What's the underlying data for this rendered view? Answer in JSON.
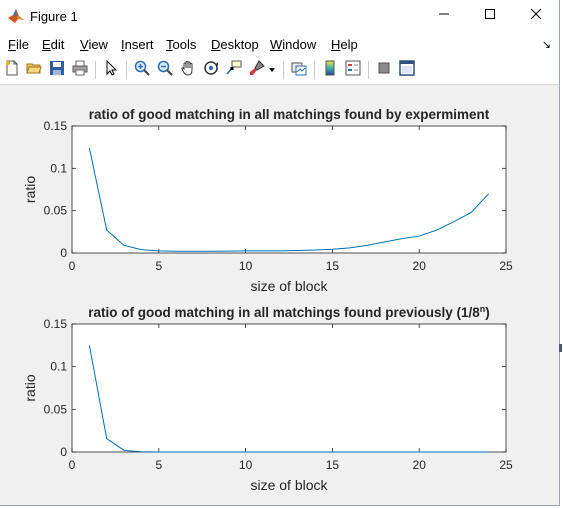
{
  "window": {
    "title": "Figure 1",
    "icon": "matlab-logo-icon"
  },
  "controls": {
    "minimize": "minimize-icon",
    "maximize": "maximize-icon",
    "close": "close-icon"
  },
  "menu": {
    "items": [
      {
        "key": "F",
        "rest": "ile"
      },
      {
        "key": "E",
        "rest": "dit"
      },
      {
        "key": "V",
        "rest": "iew"
      },
      {
        "key": "I",
        "rest": "nsert"
      },
      {
        "key": "T",
        "rest": "ools"
      },
      {
        "key": "D",
        "rest": "esktop"
      },
      {
        "key": "W",
        "rest": "indow"
      },
      {
        "key": "H",
        "rest": "elp"
      }
    ],
    "overflow": "↘"
  },
  "toolbar": {
    "icons": [
      "new-figure-icon",
      "open-file-icon",
      "save-icon",
      "print-icon",
      "select-arrow-icon",
      "zoom-in-icon",
      "zoom-out-icon",
      "pan-hand-icon",
      "rotate-3d-icon",
      "data-cursor-icon",
      "brush-icon",
      "brush-dropdown-icon",
      "link-plot-icon",
      "colorbar-icon",
      "legend-icon",
      "hide-plot-tools-icon",
      "show-plot-tools-icon"
    ]
  },
  "chart_data": [
    {
      "type": "line",
      "title": "ratio of good matching in all matchings found by expermiment",
      "xlabel": "size of block",
      "ylabel": "ratio",
      "xlim": [
        0,
        25
      ],
      "ylim": [
        0,
        0.15
      ],
      "xticks": [
        "0",
        "5",
        "10",
        "15",
        "20",
        "25"
      ],
      "yticks": [
        "0",
        "0.05",
        "0.1",
        "0.15"
      ],
      "grid": false,
      "color": "#0072bd",
      "x": [
        1,
        2,
        3,
        4,
        5,
        6,
        7,
        8,
        9,
        10,
        11,
        12,
        13,
        14,
        15,
        16,
        17,
        18,
        19,
        20,
        21,
        22,
        23,
        24
      ],
      "y": [
        0.124,
        0.027,
        0.009,
        0.004,
        0.0025,
        0.002,
        0.002,
        0.002,
        0.0022,
        0.0025,
        0.0025,
        0.0025,
        0.003,
        0.0035,
        0.0045,
        0.006,
        0.009,
        0.013,
        0.017,
        0.02,
        0.027,
        0.037,
        0.048,
        0.07
      ]
    },
    {
      "type": "line",
      "title": "ratio of good matching in all matchings found previously (1/8",
      "title_sup": "n",
      "title_end": ")",
      "xlabel": "size of block",
      "ylabel": "ratio",
      "xlim": [
        0,
        25
      ],
      "ylim": [
        0,
        0.15
      ],
      "xticks": [
        "0",
        "5",
        "10",
        "15",
        "20",
        "25"
      ],
      "yticks": [
        "0",
        "0.05",
        "0.1",
        "0.15"
      ],
      "grid": false,
      "color": "#0072bd",
      "x": [
        1,
        2,
        3,
        4,
        5,
        6,
        7,
        8,
        9,
        10,
        11,
        12,
        13,
        14,
        15,
        16,
        17,
        18,
        19,
        20,
        21,
        22,
        23,
        24
      ],
      "y": [
        0.125,
        0.0156,
        0.00195,
        0.000244,
        3.05e-05,
        3.8e-06,
        5e-07,
        6e-08,
        0,
        0,
        0,
        0,
        0,
        0,
        0,
        0,
        0,
        0,
        0,
        0,
        0,
        0,
        0,
        0
      ]
    }
  ]
}
